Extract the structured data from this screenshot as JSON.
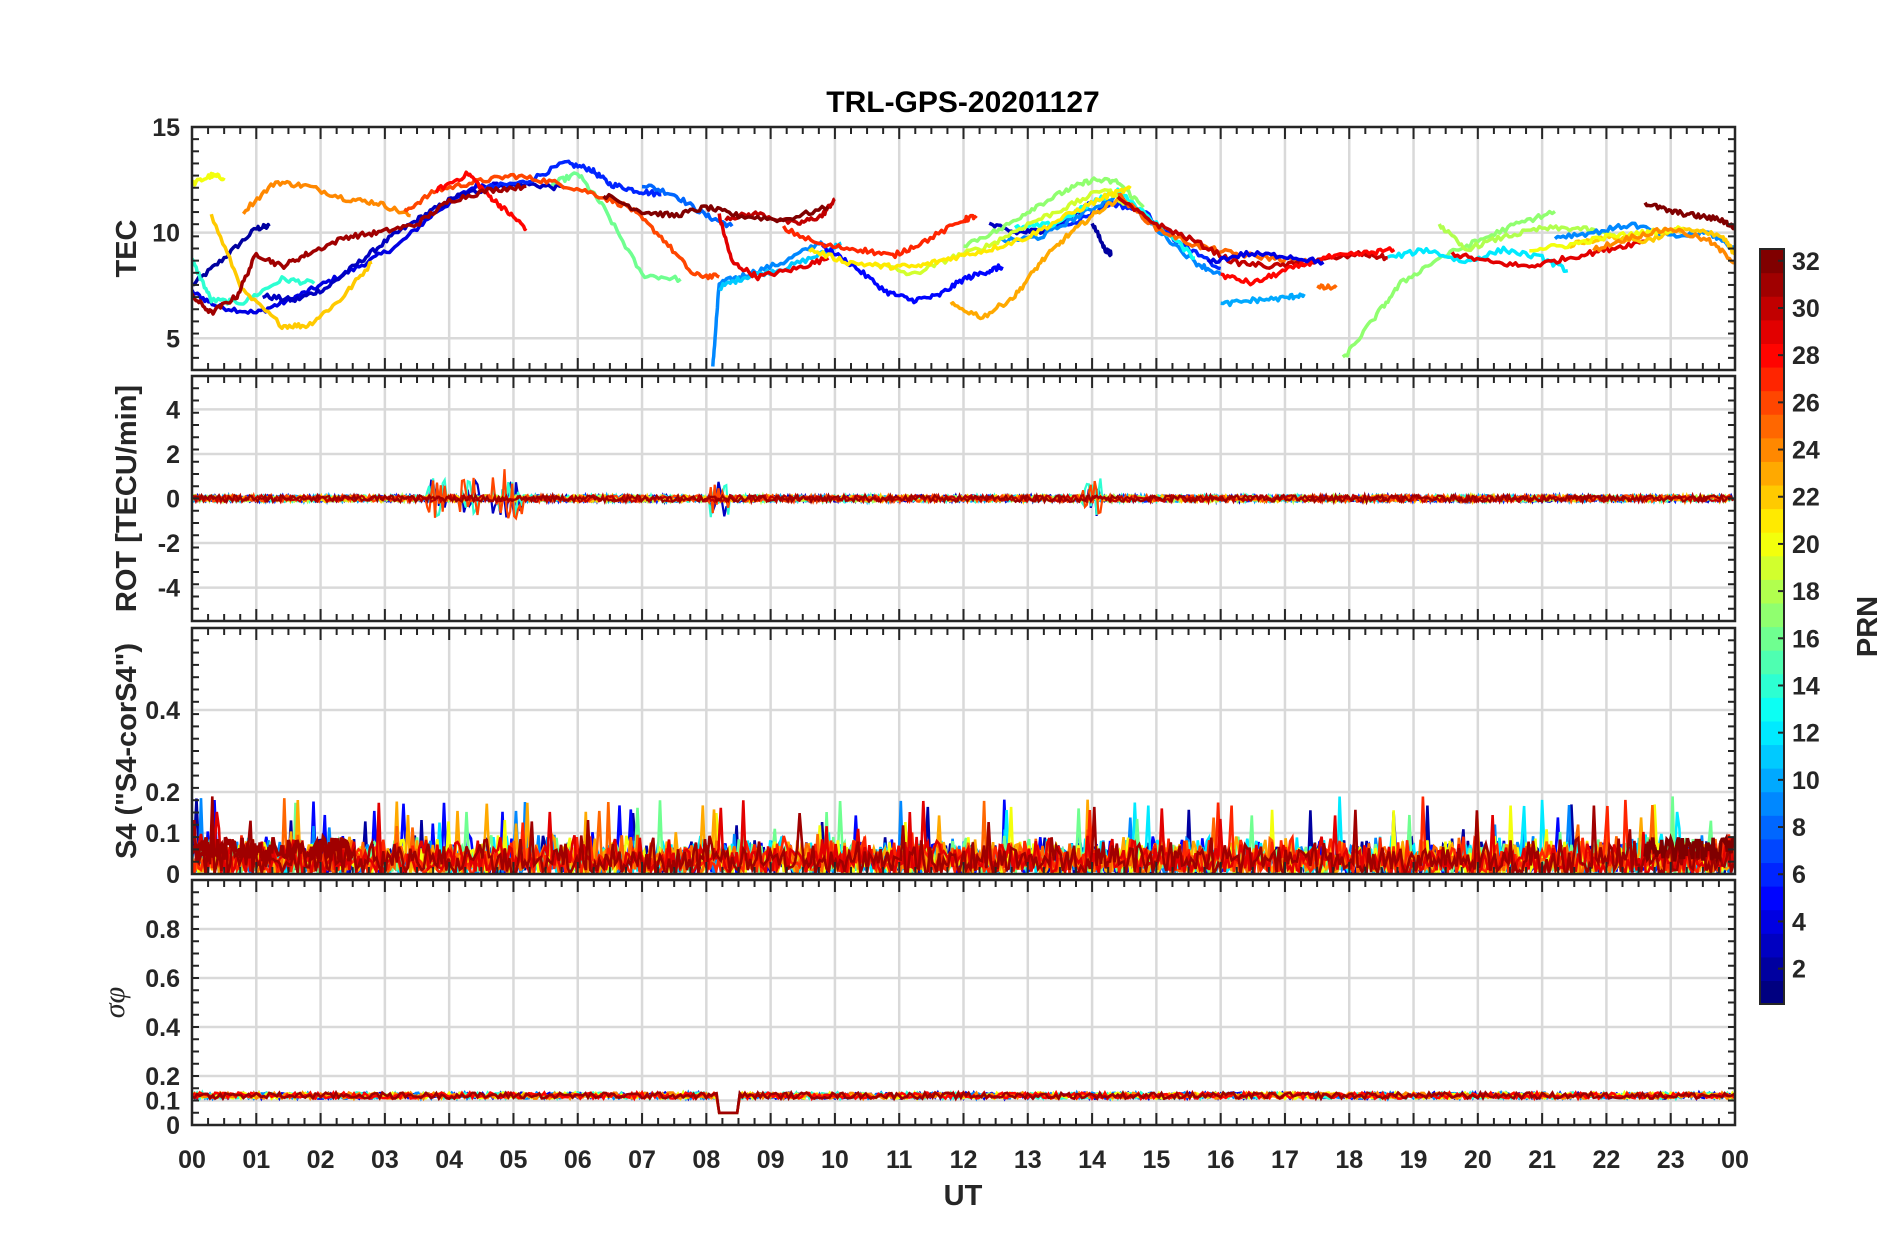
{
  "chart_data": {
    "type": "line",
    "title": "TRL-GPS-20201127",
    "xlabel": "UT",
    "x_ticks": [
      "00",
      "01",
      "02",
      "03",
      "04",
      "05",
      "06",
      "07",
      "08",
      "09",
      "10",
      "11",
      "12",
      "13",
      "14",
      "15",
      "16",
      "17",
      "18",
      "19",
      "20",
      "21",
      "22",
      "23",
      "00"
    ],
    "xlim": [
      0,
      24
    ],
    "colorbar": {
      "label": "PRN",
      "range": [
        1,
        32
      ],
      "ticks": [
        "2",
        "4",
        "6",
        "8",
        "10",
        "12",
        "14",
        "16",
        "18",
        "20",
        "22",
        "24",
        "26",
        "28",
        "30",
        "32"
      ]
    },
    "panels": [
      {
        "name": "tec",
        "ylabel": "TEC",
        "ylim": [
          3.5,
          15
        ],
        "y_ticks": [
          "5",
          "10",
          "15"
        ],
        "series": [
          {
            "prn": 2,
            "x": [
              0.0,
              0.5,
              1.0,
              1.2
            ],
            "y": [
              7.5,
              8.8,
              10.2,
              10.3
            ]
          },
          {
            "prn": 4,
            "x": [
              0.0,
              0.4,
              1.0,
              1.5,
              2.0,
              2.6,
              3.2,
              3.8,
              4.4,
              4.8
            ],
            "y": [
              7.2,
              6.5,
              6.2,
              6.8,
              7.5,
              8.4,
              9.4,
              11.0,
              12.2,
              12.3
            ]
          },
          {
            "prn": 3,
            "x": [
              1.1,
              1.6,
              2.1,
              2.6,
              3.1,
              3.6,
              4.1,
              4.6,
              5.2,
              5.8
            ],
            "y": [
              7.0,
              6.8,
              7.4,
              8.6,
              9.8,
              10.8,
              11.7,
              12.1,
              12.3,
              12.1
            ]
          },
          {
            "prn": 6,
            "x": [
              4.5,
              5.2,
              5.8,
              6.2,
              6.5,
              6.9,
              7.3
            ],
            "y": [
              12.1,
              12.4,
              13.3,
              13.0,
              12.3,
              12.0,
              11.8
            ]
          },
          {
            "prn": 8,
            "x": [
              7.0,
              7.5,
              8.0,
              8.4
            ],
            "y": [
              12.3,
              11.8,
              10.8,
              10.3
            ]
          },
          {
            "prn": 9,
            "x": [
              8.1,
              8.2,
              8.6,
              9.2,
              9.8
            ],
            "y": [
              3.6,
              7.6,
              8.0,
              8.6,
              9.6
            ]
          },
          {
            "prn": 11,
            "x": [
              8.2,
              8.6,
              9.2,
              9.8,
              10.1
            ],
            "y": [
              7.4,
              7.9,
              8.3,
              9.0,
              9.5
            ]
          },
          {
            "prn": 14,
            "x": [
              0.0,
              0.3,
              0.8,
              1.4,
              1.9
            ],
            "y": [
              8.7,
              6.8,
              6.7,
              7.8,
              7.6
            ]
          },
          {
            "prn": 16,
            "x": [
              5.6,
              6.0,
              6.4,
              7.0,
              7.6
            ],
            "y": [
              12.3,
              12.8,
              11.2,
              8.0,
              7.8
            ]
          },
          {
            "prn": 20,
            "x": [
              0.0,
              0.3,
              0.5
            ],
            "y": [
              12.3,
              12.7,
              12.6
            ]
          },
          {
            "prn": 22,
            "x": [
              0.3,
              0.8,
              1.4,
              1.8,
              2.3,
              2.8
            ],
            "y": [
              10.8,
              7.2,
              5.6,
              5.6,
              6.8,
              8.6
            ]
          },
          {
            "prn": 24,
            "x": [
              0.8,
              1.3,
              1.8,
              2.4,
              2.9,
              3.4
            ],
            "y": [
              11.0,
              12.4,
              12.2,
              11.6,
              11.4,
              10.8
            ]
          },
          {
            "prn": 26,
            "x": [
              3.3,
              3.8,
              4.4,
              5.0,
              5.6,
              6.2,
              6.8,
              7.3,
              7.8,
              8.2
            ],
            "y": [
              11.0,
              12.0,
              12.4,
              12.7,
              12.4,
              11.9,
              11.2,
              9.8,
              8.0,
              7.9
            ]
          },
          {
            "prn": 28,
            "x": [
              3.8,
              4.3,
              4.6,
              4.9,
              5.2
            ],
            "y": [
              12.0,
              12.8,
              11.8,
              11.0,
              10.2
            ]
          },
          {
            "prn": 29,
            "x": [
              8.2,
              8.4,
              8.8,
              9.4,
              9.9
            ],
            "y": [
              10.8,
              8.6,
              7.9,
              8.3,
              8.8
            ]
          },
          {
            "prn": 30,
            "x": [
              8.3,
              8.8,
              9.4,
              9.8,
              10.0
            ],
            "y": [
              10.7,
              10.9,
              10.4,
              10.8,
              11.6
            ]
          },
          {
            "prn": 31,
            "x": [
              0.0,
              0.3,
              0.7,
              1.0,
              1.4,
              1.8,
              2.4,
              2.9,
              3.5,
              4.0,
              4.6,
              5.2
            ],
            "y": [
              7.0,
              6.2,
              7.0,
              9.0,
              8.4,
              9.0,
              9.8,
              10.0,
              10.4,
              11.5,
              12.0,
              12.2
            ]
          },
          {
            "prn": 32,
            "x": [
              6.4,
              7.0,
              7.5,
              8.0,
              8.5,
              9.2,
              9.9
            ],
            "y": [
              11.8,
              11.0,
              10.8,
              11.2,
              10.8,
              10.6,
              11.2
            ]
          },
          {
            "prn": 5,
            "x": [
              9.8,
              10.3,
              10.8,
              11.2,
              11.6,
              12.0,
              12.4,
              12.6
            ],
            "y": [
              9.4,
              8.4,
              7.2,
              6.8,
              7.0,
              7.8,
              8.2,
              8.4
            ]
          },
          {
            "prn": 3,
            "x": [
              12.4,
              12.8,
              13.2,
              13.6,
              14.0
            ],
            "y": [
              10.4,
              10.0,
              10.1,
              10.6,
              11.5
            ]
          },
          {
            "prn": 2,
            "x": [
              14.0,
              14.2,
              14.3
            ],
            "y": [
              10.5,
              9.2,
              9.0
            ]
          },
          {
            "prn": 6,
            "x": [
              13.2,
              13.8,
              14.3,
              14.8,
              15.4,
              16.0
            ],
            "y": [
              10.1,
              10.6,
              11.4,
              11.0,
              9.4,
              8.3
            ]
          },
          {
            "prn": 9,
            "x": [
              12.6,
              13.2,
              13.8,
              14.4,
              15.0,
              15.6,
              16.0
            ],
            "y": [
              9.6,
              9.8,
              10.8,
              11.8,
              10.2,
              8.6,
              8.0
            ]
          },
          {
            "prn": 13,
            "x": [
              12.8,
              13.4,
              14.0,
              14.4,
              15.0,
              15.6
            ],
            "y": [
              10.2,
              10.4,
              11.4,
              12.0,
              10.4,
              8.8
            ]
          },
          {
            "prn": 17,
            "x": [
              12.0,
              12.6,
              13.1,
              13.6,
              14.0,
              14.4,
              14.8
            ],
            "y": [
              9.4,
              10.2,
              11.2,
              12.0,
              12.5,
              12.4,
              11.2
            ]
          },
          {
            "prn": 19,
            "x": [
              10.6,
              11.2,
              11.8,
              12.4,
              13.0,
              13.6,
              14.2,
              14.6
            ],
            "y": [
              8.6,
              8.0,
              8.8,
              9.4,
              10.4,
              11.2,
              12.1,
              11.2
            ]
          },
          {
            "prn": 21,
            "x": [
              9.6,
              10.2,
              10.8,
              11.3,
              11.8,
              12.4,
              13.0,
              13.6,
              14.2,
              14.6
            ],
            "y": [
              9.2,
              8.6,
              8.4,
              8.4,
              8.8,
              9.2,
              9.8,
              10.8,
              11.7,
              12.1
            ]
          },
          {
            "prn": 23,
            "x": [
              11.8,
              12.3,
              12.8,
              13.2,
              13.6,
              14.0,
              14.4
            ],
            "y": [
              6.6,
              6.0,
              7.0,
              8.6,
              9.8,
              10.8,
              11.6
            ]
          },
          {
            "prn": 25,
            "x": [
              14.4,
              15.0,
              15.6,
              16.2,
              16.8,
              17.4
            ],
            "y": [
              11.8,
              10.2,
              9.4,
              9.0,
              8.8,
              8.6
            ]
          },
          {
            "prn": 27,
            "x": [
              9.2,
              9.8,
              10.4,
              10.9,
              11.4,
              12.0,
              12.2
            ],
            "y": [
              10.2,
              9.4,
              9.2,
              8.9,
              9.6,
              10.6,
              10.8
            ]
          },
          {
            "prn": 30,
            "x": [
              14.4,
              15.0,
              15.6,
              16.2,
              16.8,
              17.4,
              18.2,
              18.6
            ],
            "y": [
              11.6,
              10.4,
              9.6,
              8.6,
              8.4,
              8.6,
              9.0,
              8.8
            ]
          },
          {
            "prn": 28,
            "x": [
              16.0,
              16.5,
              17.0,
              17.6,
              18.2,
              18.7
            ],
            "y": [
              8.0,
              7.6,
              8.2,
              8.8,
              9.0,
              9.2
            ]
          },
          {
            "prn": 4,
            "x": [
              15.8,
              16.4,
              17.0,
              17.6
            ],
            "y": [
              8.6,
              9.0,
              8.9,
              8.6
            ]
          },
          {
            "prn": 10,
            "x": [
              16.0,
              16.5,
              17.0,
              17.3
            ],
            "y": [
              6.6,
              6.8,
              6.9,
              7.1
            ]
          },
          {
            "prn": 25,
            "x": [
              17.5,
              17.8
            ],
            "y": [
              7.4,
              7.4
            ]
          },
          {
            "prn": 17,
            "x": [
              17.9,
              18.4,
              18.8,
              19.4,
              20.0,
              20.6,
              21.2
            ],
            "y": [
              4.0,
              6.0,
              7.6,
              8.8,
              9.6,
              10.4,
              11.0
            ]
          },
          {
            "prn": 12,
            "x": [
              18.6,
              19.2,
              19.8,
              20.4,
              21.0,
              21.4
            ],
            "y": [
              8.8,
              9.2,
              8.6,
              9.2,
              8.8,
              8.2
            ]
          },
          {
            "prn": 18,
            "x": [
              19.4,
              19.8,
              20.4,
              21.0,
              21.6,
              22.2
            ],
            "y": [
              10.4,
              9.2,
              9.8,
              10.2,
              10.2,
              9.8
            ]
          },
          {
            "prn": 29,
            "x": [
              19.6,
              20.2,
              20.8,
              21.4,
              22.0,
              22.6
            ],
            "y": [
              9.0,
              8.6,
              8.4,
              8.8,
              9.2,
              9.6
            ]
          },
          {
            "prn": 9,
            "x": [
              21.2,
              21.8,
              22.4,
              23.0,
              23.6,
              24.0
            ],
            "y": [
              9.8,
              10.0,
              10.4,
              9.8,
              10.0,
              9.2
            ]
          },
          {
            "prn": 22,
            "x": [
              21.4,
              22.0,
              22.6,
              23.2,
              23.8,
              24.0
            ],
            "y": [
              9.4,
              9.8,
              9.6,
              10.2,
              9.8,
              9.0
            ]
          },
          {
            "prn": 20,
            "x": [
              20.8,
              21.4,
              22.0,
              22.6,
              23.2
            ],
            "y": [
              9.2,
              9.4,
              9.8,
              10.0,
              10.2
            ]
          },
          {
            "prn": 24,
            "x": [
              21.8,
              22.4,
              23.0,
              23.6,
              24.0
            ],
            "y": [
              9.2,
              9.8,
              10.2,
              9.6,
              8.6
            ]
          },
          {
            "prn": 32,
            "x": [
              22.6,
              23.0,
              23.4,
              23.8,
              24.0
            ],
            "y": [
              11.4,
              11.0,
              10.8,
              10.6,
              10.2
            ]
          }
        ]
      },
      {
        "name": "rot",
        "ylabel": "ROT [TECU/min]",
        "ylim": [
          -5.5,
          5.5
        ],
        "y_ticks": [
          "-4",
          "-2",
          "0",
          "2",
          "4"
        ],
        "noise_amplitude": 0.15,
        "spike_times": [
          3.8,
          4.3,
          4.8,
          5.0,
          8.2,
          14.0
        ],
        "spike_amplitude": 0.8
      },
      {
        "name": "s4",
        "ylabel": "S4 (\"S4-corS4\")",
        "ylim": [
          0,
          0.6
        ],
        "y_ticks": [
          "0",
          "0.1",
          "0.2",
          "0.4"
        ],
        "noise_max": 0.1,
        "spike_max": 0.19
      },
      {
        "name": "sigma_phi",
        "ylabel": "σφ",
        "ylim": [
          0,
          1
        ],
        "y_ticks": [
          "0",
          "0.1",
          "0.2",
          "0.4",
          "0.6",
          "0.8"
        ],
        "baseline": 0.12,
        "dip": {
          "x": [
            8.2,
            8.5
          ],
          "y": 0.05
        }
      }
    ]
  }
}
